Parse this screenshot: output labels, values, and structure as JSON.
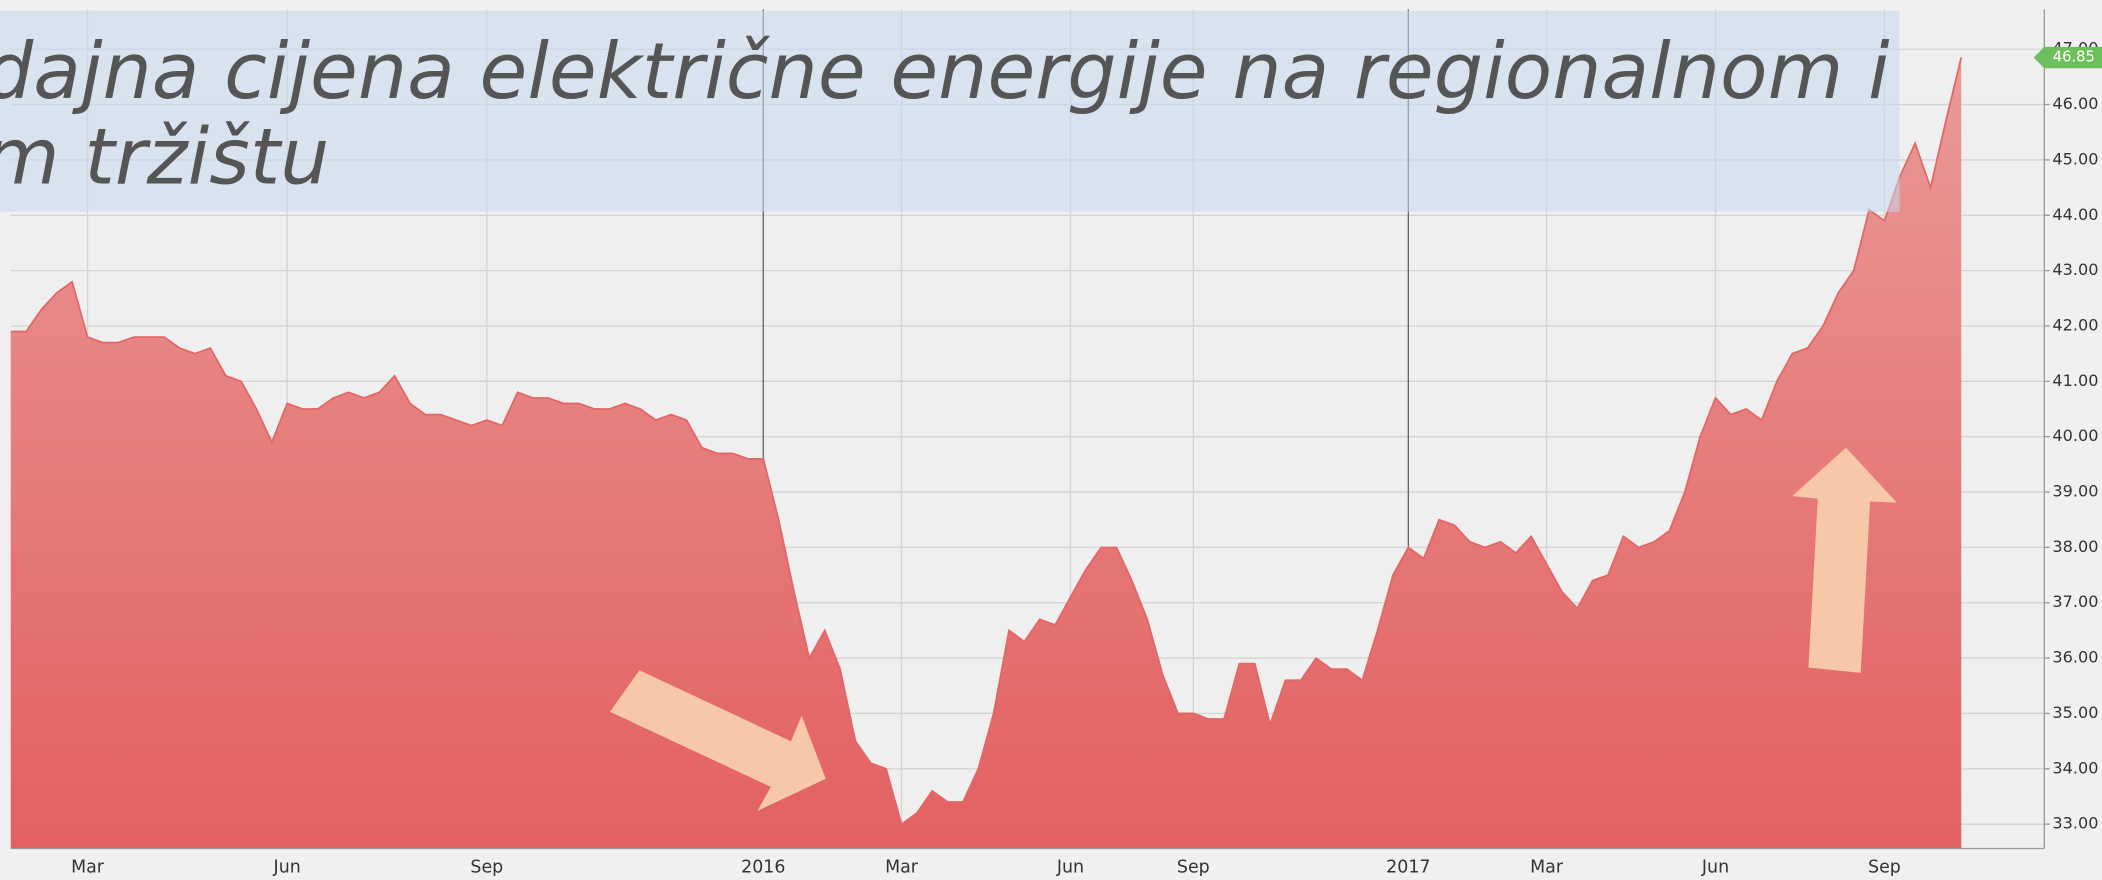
{
  "chart_data": {
    "type": "area",
    "title_lines": [
      "dajna cijena električne energije na regionalnom i",
      "m tržištu"
    ],
    "categories": [
      null,
      null,
      null,
      null,
      null,
      "Mar",
      null,
      null,
      null,
      null,
      null,
      null,
      null,
      null,
      null,
      null,
      null,
      null,
      "Jun",
      null,
      null,
      null,
      null,
      null,
      null,
      null,
      null,
      null,
      null,
      null,
      null,
      "Sep",
      null,
      null,
      null,
      null,
      null,
      null,
      null,
      null,
      null,
      null,
      null,
      null,
      null,
      null,
      null,
      null,
      null,
      "2016",
      null,
      null,
      null,
      null,
      null,
      null,
      null,
      null,
      "Mar",
      null,
      null,
      null,
      null,
      null,
      null,
      null,
      null,
      null,
      null,
      "Jun",
      null,
      null,
      null,
      null,
      null,
      null,
      null,
      "Sep",
      null,
      null,
      null,
      null,
      null,
      null,
      null,
      null,
      null,
      null,
      null,
      null,
      null,
      "2017",
      null,
      null,
      null,
      null,
      null,
      null,
      null,
      null,
      "Mar",
      null,
      null,
      null,
      null,
      null,
      null,
      null,
      null,
      null,
      null,
      "Jun",
      null,
      null,
      null,
      null,
      null,
      null,
      null,
      null,
      null,
      null,
      "Sep",
      null,
      null,
      null,
      null,
      null
    ],
    "series": [
      {
        "name": null,
        "color": "#e36565",
        "values": [
          41.9,
          41.9,
          42.3,
          42.6,
          42.8,
          41.8,
          41.7,
          41.7,
          41.8,
          41.8,
          41.8,
          41.6,
          41.5,
          41.6,
          41.1,
          41.0,
          40.5,
          39.9,
          40.6,
          40.5,
          40.5,
          40.7,
          40.8,
          40.7,
          40.8,
          41.1,
          40.6,
          40.4,
          40.4,
          40.3,
          40.2,
          40.3,
          40.2,
          40.8,
          40.7,
          40.7,
          40.6,
          40.6,
          40.5,
          40.5,
          40.6,
          40.5,
          40.3,
          40.4,
          40.3,
          39.8,
          39.7,
          39.7,
          39.6,
          39.6,
          38.5,
          37.2,
          36.0,
          36.5,
          35.8,
          34.5,
          34.1,
          34.0,
          33.0,
          33.2,
          33.6,
          33.4,
          33.4,
          34.0,
          35.0,
          36.5,
          36.3,
          36.7,
          36.6,
          37.1,
          37.6,
          38.0,
          38.0,
          37.4,
          36.7,
          35.7,
          35.0,
          35.0,
          34.9,
          34.9,
          35.9,
          35.9,
          34.8,
          35.6,
          35.6,
          36.0,
          35.8,
          35.8,
          35.6,
          36.5,
          37.5,
          38.0,
          37.8,
          38.5,
          38.4,
          38.1,
          38.0,
          38.1,
          37.9,
          38.2,
          37.7,
          37.2,
          36.9,
          37.4,
          37.5,
          38.2,
          38.0,
          38.1,
          38.3,
          39.0,
          40.0,
          40.7,
          40.4,
          40.5,
          40.3,
          41.0,
          41.5,
          41.6,
          42.0,
          42.6,
          43.0,
          44.1,
          43.9,
          44.7,
          45.3,
          44.5,
          45.7,
          46.85
        ]
      }
    ],
    "ylim": [
      32.56,
      47.72
    ],
    "yticks": [
      {
        "value": 33,
        "label": "33.00"
      },
      {
        "value": 34,
        "label": "34.00"
      },
      {
        "value": 35,
        "label": "35.00"
      },
      {
        "value": 36,
        "label": "36.00"
      },
      {
        "value": 37,
        "label": "37.00"
      },
      {
        "value": 38,
        "label": "38.00"
      },
      {
        "value": 39,
        "label": "39.00"
      },
      {
        "value": 40,
        "label": "40.00"
      },
      {
        "value": 41,
        "label": "41.00"
      },
      {
        "value": 42,
        "label": "42.00"
      },
      {
        "value": 43,
        "label": "43.00"
      },
      {
        "value": 44,
        "label": "44.00"
      },
      {
        "value": 45,
        "label": "45.00"
      },
      {
        "value": 46,
        "label": "46.00"
      },
      {
        "value": 47,
        "label": "47.00"
      }
    ],
    "grid": true,
    "last_value_color": "#6cbf5a"
  }
}
